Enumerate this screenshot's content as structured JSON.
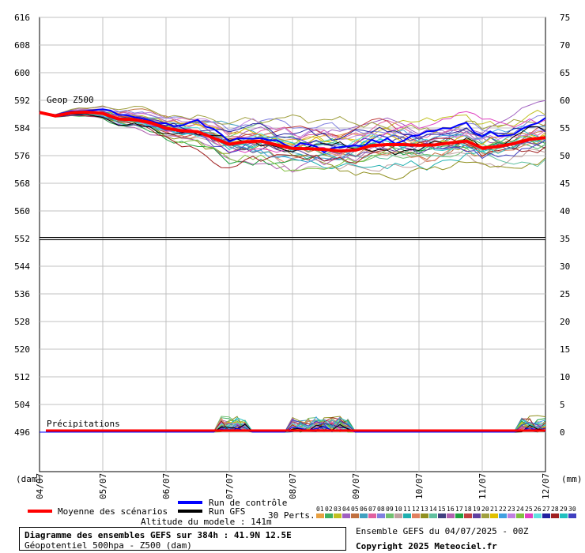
{
  "chart_data": {
    "type": "line",
    "y_left_ticks": [
      "616",
      "608",
      "600",
      "592",
      "584",
      "576",
      "568",
      "560",
      "552",
      "544",
      "536",
      "528",
      "520",
      "512",
      "504",
      "496"
    ],
    "y_right_ticks": [
      "75",
      "70",
      "65",
      "60",
      "55",
      "50",
      "45",
      "40",
      "35",
      "30",
      "25",
      "20",
      "15",
      "10",
      "5",
      "0"
    ],
    "left_unit": "(dam)",
    "right_unit": "(mm)",
    "x_ticks": [
      "04/07",
      "05/07",
      "06/07",
      "07/07",
      "08/07",
      "09/07",
      "10/07",
      "11/07",
      "12/07"
    ],
    "geop_label": "Geop Z500",
    "precip_label": "Précipitations",
    "mean_z500": {
      "x_days": [
        0,
        0.25,
        0.5,
        0.75,
        1,
        1.25,
        1.5,
        1.75,
        2,
        2.25,
        2.5,
        2.75,
        3,
        3.25,
        3.5,
        3.75,
        4,
        4.25,
        4.5,
        4.75,
        5,
        5.25,
        5.5,
        5.75,
        6,
        6.25,
        6.5,
        6.75,
        7,
        7.25,
        7.5,
        7.75,
        8
      ],
      "values": [
        588.5,
        587.5,
        588.4,
        588.6,
        588.2,
        586.6,
        586.4,
        585.6,
        583.9,
        583.2,
        582.9,
        581.1,
        579.3,
        580.0,
        580.2,
        579.1,
        578.1,
        578.0,
        577.8,
        577.3,
        577.6,
        578.9,
        579.2,
        579.2,
        579.0,
        579.1,
        579.7,
        580.2,
        578.2,
        578.6,
        579.5,
        580.7,
        581.2
      ]
    },
    "series_legend": {
      "mean": "Moyenne des scénarios",
      "control": "Run de contrôle",
      "gfs": "Run GFS",
      "perts": "30 Perts."
    },
    "pert_ids": [
      "01",
      "02",
      "03",
      "04",
      "05",
      "06",
      "07",
      "08",
      "09",
      "10",
      "11",
      "12",
      "13",
      "14",
      "15",
      "16",
      "17",
      "18",
      "19",
      "20",
      "21",
      "22",
      "23",
      "24",
      "25",
      "26",
      "27",
      "28",
      "29",
      "30"
    ],
    "pert_colors": [
      "#e8a040",
      "#40b060",
      "#c0c020",
      "#a060c0",
      "#c07040",
      "#40a0c0",
      "#e060a0",
      "#8080e0",
      "#70c070",
      "#c0a0a0",
      "#20b0b0",
      "#e08060",
      "#909020",
      "#60c0a0",
      "#404080",
      "#b060b0",
      "#20a040",
      "#c04040",
      "#6040a0",
      "#a0a040",
      "#e0c000",
      "#40a0e0",
      "#c080e0",
      "#80c040",
      "#e040c0",
      "#60e0e0",
      "#2020a0",
      "#a02020",
      "#20c0c0",
      "#4040c0"
    ],
    "colors": {
      "mean": "#ff0000",
      "control": "#0000ff",
      "gfs": "#000000",
      "threshold": "#000000",
      "grid": "#c0c0c0"
    }
  },
  "model_altitude": "Altitude du modele : 141m",
  "footer": {
    "title": "Diagramme des ensembles GEFS sur 384h : 41.9N 12.5E",
    "subtitle": "Géopotentiel 500hpa - Z500 (dam)",
    "run_info": "Ensemble GEFS du 04/07/2025 - 00Z",
    "copyright": "Copyright 2025 Meteociel.fr"
  }
}
